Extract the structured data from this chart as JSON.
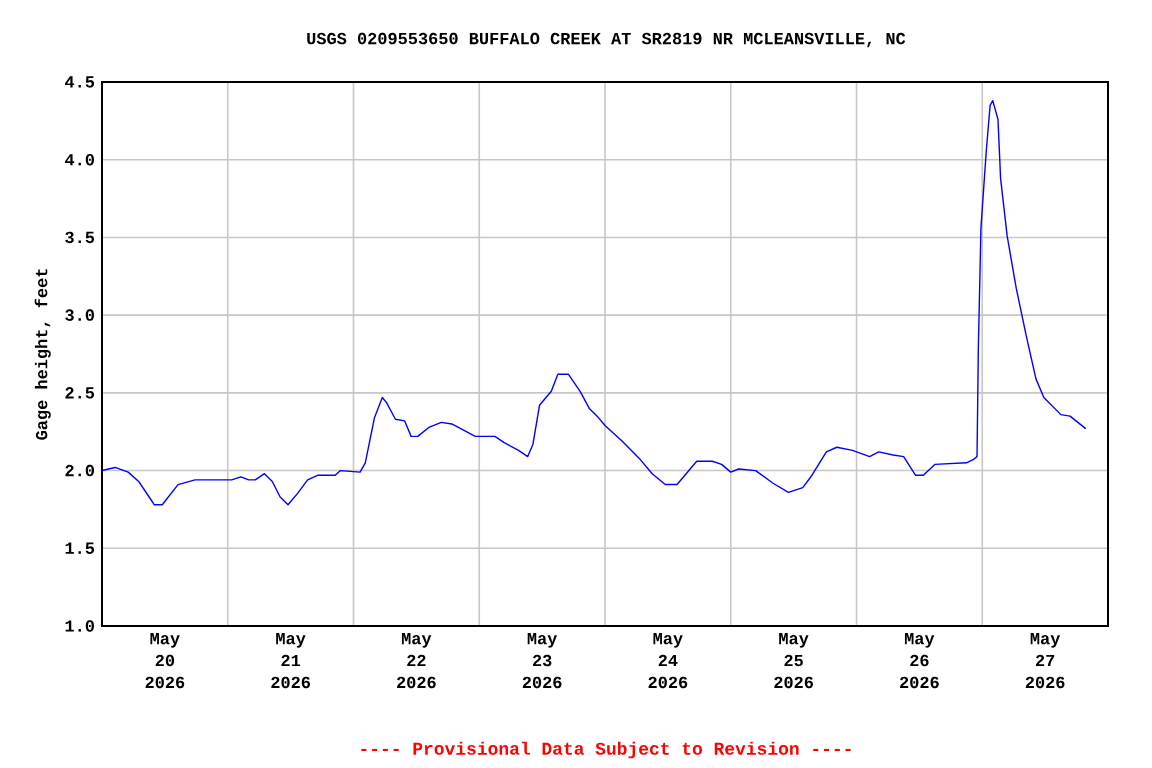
{
  "chart_data": {
    "type": "line",
    "title": "USGS 0209553650 BUFFALO CREEK AT SR2819 NR MCLEANSVILLE, NC",
    "ylabel": "Gage height, feet",
    "annotations": [
      "---- Provisional Data Subject to Revision ----"
    ],
    "x": [
      "2026-05-20T00:00",
      "2026-05-20T02:30",
      "2026-05-20T05:00",
      "2026-05-20T07:00",
      "2026-05-20T09:00",
      "2026-05-20T10:00",
      "2026-05-20T11:30",
      "2026-05-20T14:30",
      "2026-05-20T17:45",
      "2026-05-20T21:00",
      "2026-05-21T00:45",
      "2026-05-21T02:30",
      "2026-05-21T04:00",
      "2026-05-21T05:15",
      "2026-05-21T07:00",
      "2026-05-21T08:30",
      "2026-05-21T10:00",
      "2026-05-21T11:30",
      "2026-05-21T13:15",
      "2026-05-21T15:15",
      "2026-05-21T17:15",
      "2026-05-21T20:30",
      "2026-05-21T21:30",
      "2026-05-22T01:15",
      "2026-05-22T02:15",
      "2026-05-22T04:00",
      "2026-05-22T05:30",
      "2026-05-22T06:15",
      "2026-05-22T08:00",
      "2026-05-22T09:45",
      "2026-05-22T11:00",
      "2026-05-22T12:15",
      "2026-05-22T14:30",
      "2026-05-22T16:45",
      "2026-05-22T18:45",
      "2026-05-22T21:00",
      "2026-05-22T23:15",
      "2026-05-23T03:00",
      "2026-05-23T04:45",
      "2026-05-23T07:30",
      "2026-05-23T09:15",
      "2026-05-23T10:15",
      "2026-05-23T11:30",
      "2026-05-23T13:45",
      "2026-05-23T15:00",
      "2026-05-23T17:00",
      "2026-05-23T19:15",
      "2026-05-23T21:00",
      "2026-05-23T22:30",
      "2026-05-24T00:00",
      "2026-05-24T03:15",
      "2026-05-24T06:30",
      "2026-05-24T09:00",
      "2026-05-24T11:30",
      "2026-05-24T13:45",
      "2026-05-24T15:15",
      "2026-05-24T17:30",
      "2026-05-24T20:30",
      "2026-05-24T22:15",
      "2026-05-25T00:00",
      "2026-05-25T01:30",
      "2026-05-25T04:45",
      "2026-05-25T08:00",
      "2026-05-25T11:00",
      "2026-05-25T13:45",
      "2026-05-25T15:30",
      "2026-05-25T18:15",
      "2026-05-25T20:15",
      "2026-05-25T23:15",
      "2026-05-26T02:30",
      "2026-05-26T04:15",
      "2026-05-26T07:00",
      "2026-05-26T09:00",
      "2026-05-26T11:15",
      "2026-05-26T12:45",
      "2026-05-26T15:00",
      "2026-05-26T21:00",
      "2026-05-26T22:15",
      "2026-05-26T23:00",
      "2026-05-26T23:15",
      "2026-05-26T23:45",
      "2026-05-27T00:45",
      "2026-05-27T01:30",
      "2026-05-27T02:00",
      "2026-05-27T03:00",
      "2026-05-27T03:30",
      "2026-05-27T04:45",
      "2026-05-27T06:30",
      "2026-05-27T08:30",
      "2026-05-27T10:15",
      "2026-05-27T11:45",
      "2026-05-27T15:00",
      "2026-05-27T16:45",
      "2026-05-27T19:45"
    ],
    "series": [
      {
        "color": "#0000ff",
        "values": [
          2.0,
          2.02,
          1.99,
          1.93,
          1.83,
          1.78,
          1.78,
          1.91,
          1.94,
          1.94,
          1.94,
          1.96,
          1.94,
          1.94,
          1.98,
          1.93,
          1.83,
          1.78,
          1.85,
          1.94,
          1.97,
          1.97,
          2.0,
          1.99,
          2.05,
          2.34,
          2.47,
          2.44,
          2.33,
          2.32,
          2.22,
          2.22,
          2.28,
          2.31,
          2.3,
          2.26,
          2.22,
          2.22,
          2.18,
          2.13,
          2.09,
          2.17,
          2.42,
          2.51,
          2.62,
          2.62,
          2.51,
          2.4,
          2.35,
          2.29,
          2.19,
          2.08,
          1.98,
          1.91,
          1.91,
          1.97,
          2.06,
          2.06,
          2.04,
          1.99,
          2.01,
          2.0,
          1.92,
          1.86,
          1.89,
          1.97,
          2.12,
          2.15,
          2.13,
          2.09,
          2.12,
          2.1,
          2.09,
          1.97,
          1.97,
          2.04,
          2.05,
          2.07,
          2.09,
          2.78,
          3.56,
          4.05,
          4.35,
          4.38,
          4.26,
          3.88,
          3.51,
          3.17,
          2.85,
          2.59,
          2.47,
          2.36,
          2.35,
          2.27
        ]
      }
    ],
    "xlim": [
      "2026-05-20",
      "2026-05-28"
    ],
    "xticks": [
      {
        "value": "2026-05-20T12:00",
        "label": "May 20 2026"
      },
      {
        "value": "2026-05-21T12:00",
        "label": "May 21 2026"
      },
      {
        "value": "2026-05-22T12:00",
        "label": "May 22 2026"
      },
      {
        "value": "2026-05-23T12:00",
        "label": "May 23 2026"
      },
      {
        "value": "2026-05-24T12:00",
        "label": "May 24 2026"
      },
      {
        "value": "2026-05-25T12:00",
        "label": "May 25 2026"
      },
      {
        "value": "2026-05-26T12:00",
        "label": "May 26 2026"
      },
      {
        "value": "2026-05-27T12:00",
        "label": "May 27 2026"
      },
      {
        "value": "2026-05-21",
        "label": null
      },
      {
        "value": "2026-05-22",
        "label": null
      },
      {
        "value": "2026-05-23",
        "label": null
      },
      {
        "value": "2026-05-24",
        "label": null
      },
      {
        "value": "2026-05-25",
        "label": null
      },
      {
        "value": "2026-05-26",
        "label": null
      },
      {
        "value": "2026-05-27",
        "label": null
      }
    ],
    "ylim": [
      1.0,
      4.5
    ],
    "yticks": [
      {
        "value": 1.0,
        "label": "1.0"
      },
      {
        "value": 1.5,
        "label": "1.5"
      },
      {
        "value": 2.0,
        "label": "2.0"
      },
      {
        "value": 2.5,
        "label": "2.5"
      },
      {
        "value": 3.0,
        "label": "3.0"
      },
      {
        "value": 3.5,
        "label": "3.5"
      },
      {
        "value": 4.0,
        "label": "4.0"
      },
      {
        "value": 4.5,
        "label": "4.5"
      }
    ],
    "grid": true,
    "marker": "none",
    "line_style": "solid"
  }
}
